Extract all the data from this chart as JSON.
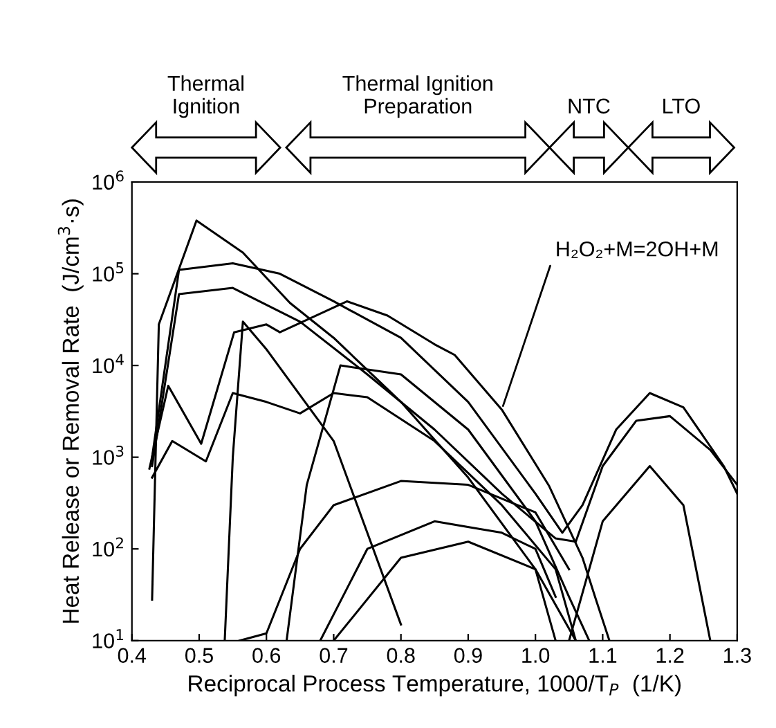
{
  "chart_data": {
    "type": "line",
    "xlabel": "Reciprocal Process Temperature, 1000/T$_{P}$  (1/K)",
    "ylabel": "Heat Release or Removal Rate  (J/cm$^{3}$·s)",
    "log": "y",
    "xlim": [
      0.4,
      1.3
    ],
    "ylim": [
      10,
      1000000
    ],
    "xticks": [
      0.4,
      0.5,
      0.6,
      0.7,
      0.8,
      0.9,
      {
        "value": 1,
        "label": "1.0"
      },
      1.1,
      1.2,
      1.3
    ],
    "yticks": [
      {
        "value": 10,
        "label": "10$^{1}$"
      },
      {
        "value": 100,
        "label": "10$^{2}$"
      },
      {
        "value": 1000,
        "label": "10$^{3}$"
      },
      {
        "value": 10000,
        "label": "10$^{4}$"
      },
      {
        "value": 100000,
        "label": "10$^{5}$"
      },
      {
        "value": 1000000,
        "label": "10$^{6}$"
      }
    ],
    "grid": false,
    "marker": "none",
    "line_style": "solid",
    "annotations": [
      "Thermal\nIgnition",
      "Thermal Ignition\nPreparation",
      "NTC",
      "LTO",
      {
        "text": "H₂O₂+M=2OH+M",
        "x": 0.95,
        "y": 3300
      }
    ],
    "series": [
      {
        "color": "#000000",
        "x": [
          0.426,
          0.454,
          0.503,
          0.552,
          0.6,
          0.62,
          0.72,
          0.78,
          0.85,
          0.88,
          0.95,
          1.02,
          1.07,
          1.09,
          1.11
        ],
        "values": [
          750,
          6000,
          1400,
          23000,
          28000,
          23000,
          50000,
          35000,
          17000,
          13000,
          3300,
          490,
          80,
          28,
          10
        ]
      },
      {
        "color": "#000000",
        "x": [
          0.43,
          0.44,
          0.496,
          0.565,
          0.635,
          0.7,
          0.8,
          0.9,
          1.0,
          1.03
        ],
        "values": [
          28,
          28000,
          380000,
          170000,
          48000,
          20000,
          4000,
          600,
          60,
          10
        ]
      },
      {
        "color": "#000000",
        "x": [
          0.43,
          0.47,
          0.55,
          0.62,
          0.7,
          0.8,
          0.9,
          1.0,
          1.04,
          1.07,
          1.12,
          1.17,
          1.22,
          1.28,
          1.3
        ],
        "values": [
          1000,
          110000,
          130000,
          100000,
          50000,
          20000,
          4000,
          400,
          150,
          300,
          2000,
          5000,
          3500,
          800,
          400
        ]
      },
      {
        "color": "#000000",
        "x": [
          0.43,
          0.47,
          0.55,
          0.65,
          0.75,
          0.85,
          0.95,
          1.03,
          1.06,
          1.1,
          1.15,
          1.2,
          1.26,
          1.3
        ],
        "values": [
          800,
          60000,
          70000,
          30000,
          8000,
          2000,
          400,
          130,
          120,
          800,
          2500,
          2800,
          1200,
          500
        ]
      },
      {
        "color": "#000000",
        "x": [
          0.538,
          0.55,
          0.565,
          0.6,
          0.7,
          0.8
        ],
        "values": [
          10,
          1000,
          30000,
          15000,
          1500,
          15
        ]
      },
      {
        "color": "#000000",
        "x": [
          0.63,
          0.66,
          0.71,
          0.8,
          0.9,
          1.0,
          1.05,
          1.08
        ],
        "values": [
          10,
          500,
          10000,
          8000,
          2000,
          200,
          30,
          10
        ]
      },
      {
        "color": "#000000",
        "x": [
          0.68,
          0.75,
          0.85,
          0.95,
          1.0,
          1.03
        ],
        "values": [
          10,
          100,
          200,
          150,
          100,
          30
        ]
      },
      {
        "color": "#000000",
        "x": [
          0.7,
          0.8,
          0.9,
          1.0,
          1.06
        ],
        "values": [
          10,
          80,
          120,
          60,
          10
        ]
      },
      {
        "color": "#000000",
        "x": [
          0.56,
          0.6,
          0.65,
          0.7,
          0.8,
          0.9,
          1.0,
          1.05
        ],
        "values": [
          10,
          12,
          100,
          300,
          550,
          500,
          250,
          60
        ]
      },
      {
        "color": "#000000",
        "x": [
          0.43,
          0.46,
          0.51,
          0.55,
          0.6,
          0.65,
          0.7,
          0.75,
          0.85,
          0.95,
          1.03,
          1.06
        ],
        "values": [
          600,
          1500,
          900,
          5000,
          4000,
          3000,
          5000,
          4500,
          1500,
          300,
          60,
          10
        ]
      },
      {
        "color": "#000000",
        "x": [
          1.05,
          1.1,
          1.17,
          1.22,
          1.26
        ],
        "values": [
          10,
          200,
          800,
          300,
          10
        ]
      }
    ]
  }
}
